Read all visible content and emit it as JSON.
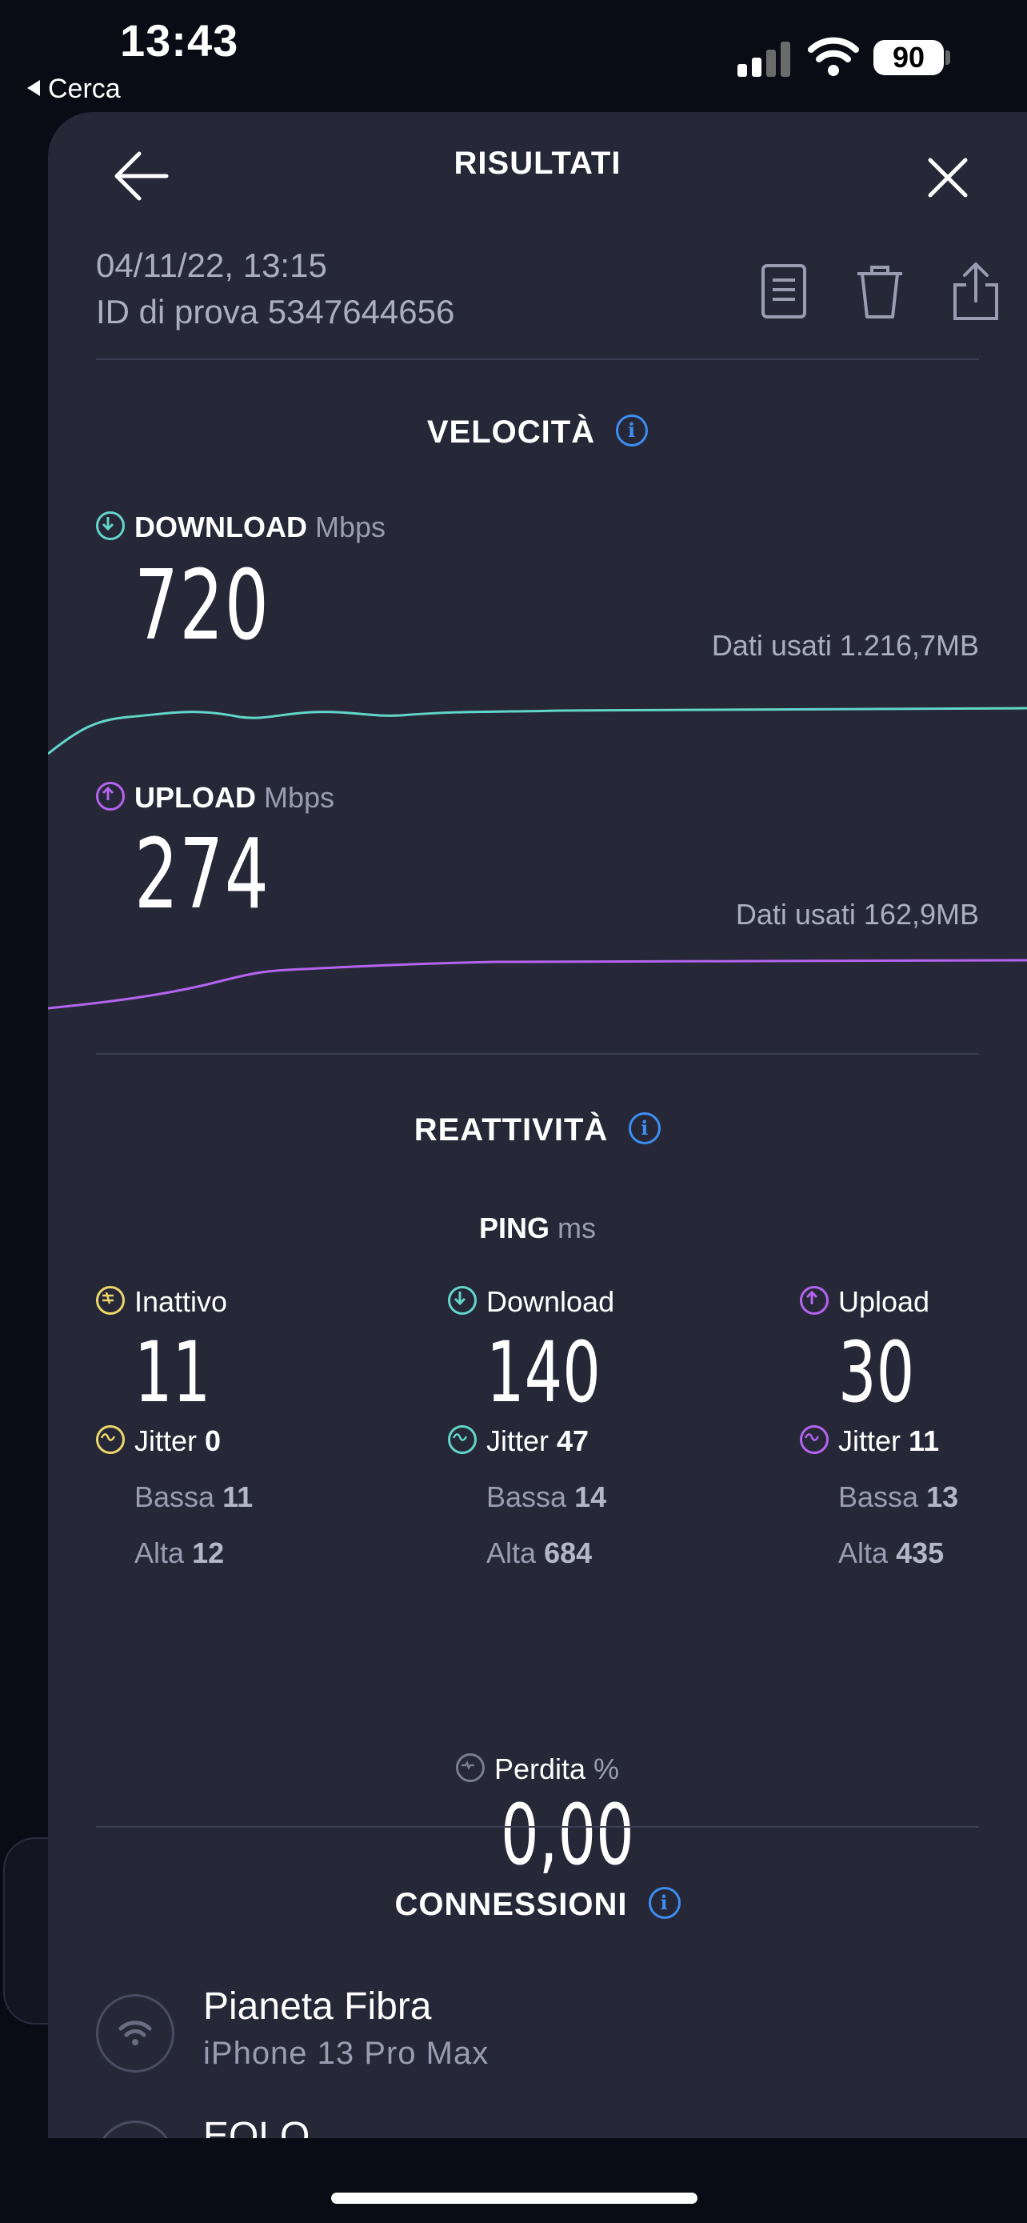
{
  "status_bar": {
    "time": "13:43",
    "back_app": "Cerca",
    "battery": "90"
  },
  "header": {
    "title": "RISULTATI"
  },
  "result": {
    "date": "04/11/22, 13:15",
    "test_id": "ID di prova 5347644656"
  },
  "speed": {
    "title": "VELOCITÀ",
    "info_glyph": "i",
    "download": {
      "label": "DOWNLOAD",
      "unit": "Mbps",
      "value": "720",
      "data_used": "Dati usati 1.216,7MB",
      "color": "#62d6c9"
    },
    "upload": {
      "label": "UPLOAD",
      "unit": "Mbps",
      "value": "274",
      "data_used": "Dati usati 162,9MB",
      "color": "#b464f0"
    }
  },
  "responsiveness": {
    "title": "REATTIVITÀ",
    "ping_label": "PING",
    "ping_unit": "ms",
    "idle": {
      "label": "Inattivo",
      "value": "11",
      "jitter_label": "Jitter",
      "jitter": "0",
      "low_label": "Bassa",
      "low": "11",
      "high_label": "Alta",
      "high": "12",
      "color": "#ecd66a"
    },
    "download": {
      "label": "Download",
      "value": "140",
      "jitter_label": "Jitter",
      "jitter": "47",
      "low_label": "Bassa",
      "low": "14",
      "high_label": "Alta",
      "high": "684",
      "color": "#62d6c9"
    },
    "upload": {
      "label": "Upload",
      "value": "30",
      "jitter_label": "Jitter",
      "jitter": "11",
      "low_label": "Bassa",
      "low": "13",
      "high_label": "Alta",
      "high": "435",
      "color": "#b464f0"
    },
    "loss_label": "Perdita",
    "loss_unit": "%",
    "loss_value": "0,00"
  },
  "connections": {
    "title": "CONNESSIONI",
    "items": [
      {
        "name": "Pianeta Fibra",
        "device": "iPhone 13 Pro Max"
      },
      {
        "name": "EOLO"
      }
    ]
  }
}
